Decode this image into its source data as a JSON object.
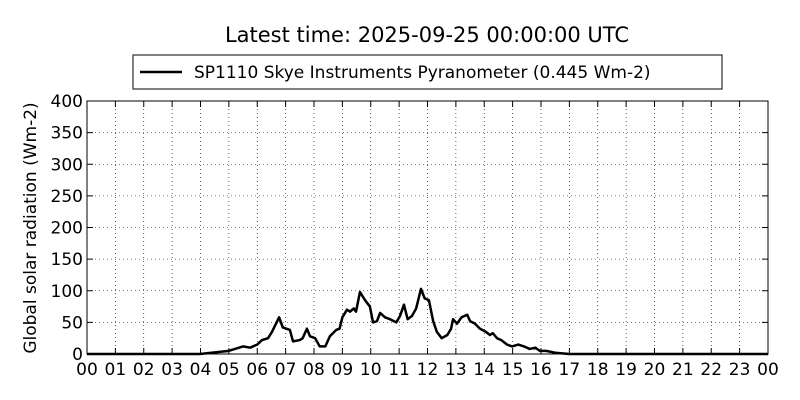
{
  "chart_data": {
    "type": "line",
    "title": "Latest time: 2025-09-25 00:00:00 UTC",
    "y_label": "Global solar radiation (Wm-2)",
    "x": [
      0,
      3.98,
      5.0,
      5.5,
      5.75,
      6.0,
      6.17,
      6.38,
      6.52,
      6.77,
      6.9,
      7.15,
      7.26,
      7.5,
      7.6,
      7.75,
      7.86,
      8.04,
      8.2,
      8.4,
      8.56,
      8.78,
      8.9,
      9.0,
      9.16,
      9.27,
      9.4,
      9.48,
      9.62,
      9.8,
      9.97,
      10.08,
      10.22,
      10.33,
      10.5,
      10.68,
      10.9,
      11.03,
      11.17,
      11.3,
      11.45,
      11.6,
      11.77,
      11.9,
      12.05,
      12.2,
      12.33,
      12.5,
      12.7,
      12.83,
      12.9,
      13.04,
      13.2,
      13.4,
      13.5,
      13.67,
      13.85,
      14.06,
      14.2,
      14.3,
      14.45,
      14.6,
      14.8,
      14.98,
      15.2,
      15.4,
      15.6,
      15.8,
      15.96,
      16.18,
      16.5,
      17.0,
      24
    ],
    "series": [
      {
        "name": "SP1110 Skye Instruments Pyranometer (0.445 Wm-2)",
        "color": "#000000",
        "values": [
          0,
          0,
          5,
          12,
          10,
          15,
          22,
          25,
          35,
          58,
          42,
          38,
          20,
          22,
          25,
          40,
          28,
          25,
          12,
          12,
          28,
          38,
          40,
          58,
          70,
          67,
          72,
          67,
          98,
          85,
          75,
          50,
          52,
          65,
          58,
          55,
          50,
          60,
          78,
          55,
          60,
          72,
          103,
          88,
          85,
          52,
          35,
          25,
          30,
          40,
          55,
          48,
          58,
          62,
          52,
          48,
          40,
          35,
          30,
          33,
          25,
          22,
          15,
          12,
          15,
          12,
          8,
          10,
          5,
          5,
          2,
          0,
          0
        ]
      }
    ],
    "xlim": [
      0,
      24
    ],
    "xticks": [
      {
        "value": 0,
        "label": "00"
      },
      {
        "value": 1,
        "label": "01"
      },
      {
        "value": 2,
        "label": "02"
      },
      {
        "value": 3,
        "label": "03"
      },
      {
        "value": 4,
        "label": "04"
      },
      {
        "value": 5,
        "label": "05"
      },
      {
        "value": 6,
        "label": "06"
      },
      {
        "value": 7,
        "label": "07"
      },
      {
        "value": 8,
        "label": "08"
      },
      {
        "value": 9,
        "label": "09"
      },
      10,
      11,
      12,
      13,
      14,
      15,
      16,
      17,
      18,
      19,
      20,
      21,
      22,
      23,
      {
        "value": 24,
        "label": "00"
      }
    ],
    "ylim": [
      0,
      400
    ],
    "yticks": [
      0,
      50,
      100,
      150,
      200,
      250,
      300,
      350,
      400
    ],
    "grid": true,
    "legend": "top"
  }
}
